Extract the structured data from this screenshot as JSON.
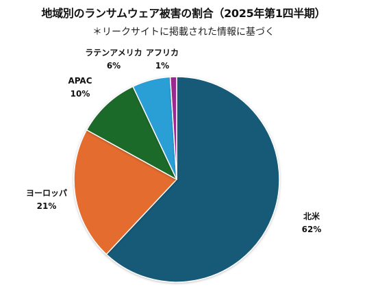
{
  "chart_data": {
    "type": "pie",
    "title": "地域別のランサムウェア被害の割合（2025年第1四半期）",
    "subtitle": "＊リークサイトに掲載された情報に基づく",
    "slices": [
      {
        "name": "北米",
        "value": 62,
        "label": "62%",
        "color": "#155a78"
      },
      {
        "name": "ヨーロッパ",
        "value": 21,
        "label": "21%",
        "color": "#e46c2f"
      },
      {
        "name": "APAC",
        "value": 10,
        "label": "10%",
        "color": "#1c6b2c"
      },
      {
        "name": "ラテンアメリカ",
        "value": 6,
        "label": "6%",
        "color": "#2a9fd6"
      },
      {
        "name": "アフリカ",
        "value": 1,
        "label": "1%",
        "color": "#9b2c8e"
      }
    ]
  }
}
